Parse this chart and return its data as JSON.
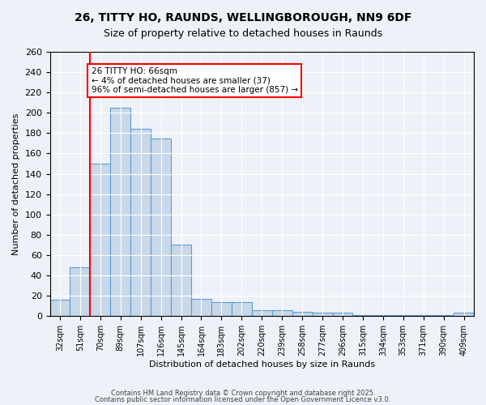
{
  "title1": "26, TITTY HO, RAUNDS, WELLINGBOROUGH, NN9 6DF",
  "title2": "Size of property relative to detached houses in Raunds",
  "xlabel": "Distribution of detached houses by size in Raunds",
  "ylabel": "Number of detached properties",
  "categories": [
    "32sqm",
    "51sqm",
    "70sqm",
    "89sqm",
    "107sqm",
    "126sqm",
    "145sqm",
    "164sqm",
    "183sqm",
    "202sqm",
    "220sqm",
    "239sqm",
    "258sqm",
    "277sqm",
    "296sqm",
    "315sqm",
    "334sqm",
    "353sqm",
    "371sqm",
    "390sqm",
    "409sqm"
  ],
  "values": [
    16,
    48,
    150,
    205,
    184,
    175,
    70,
    17,
    14,
    14,
    6,
    6,
    4,
    3,
    3,
    1,
    1,
    1,
    1,
    1,
    3
  ],
  "bar_color": "#c8d8e8",
  "bar_edge_color": "#5b9bd5",
  "red_line_x": 1.5,
  "annotation_title": "26 TITTY HO: 66sqm",
  "annotation_line1": "← 4% of detached houses are smaller (37)",
  "annotation_line2": "96% of semi-detached houses are larger (857) →",
  "ylim": [
    0,
    260
  ],
  "yticks": [
    0,
    20,
    40,
    60,
    80,
    100,
    120,
    140,
    160,
    180,
    200,
    220,
    240,
    260
  ],
  "footer1": "Contains HM Land Registry data © Crown copyright and database right 2025.",
  "footer2": "Contains public sector information licensed under the Open Government Licence v3.0.",
  "bg_color": "#eef2f8",
  "plot_bg_color": "#eef2f8"
}
